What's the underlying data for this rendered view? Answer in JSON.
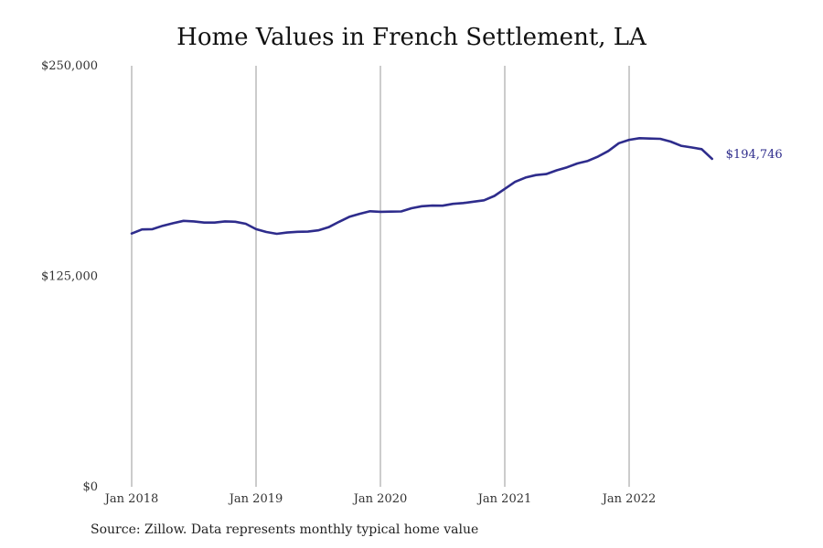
{
  "colors": {
    "line": "#2e2c8c",
    "grid": "#999999",
    "text": "#333333"
  },
  "source": "Source: Zillow. Data represents monthly typical home value",
  "chart_data": {
    "type": "line",
    "title": "Home Values in French Settlement, LA",
    "xlabel": "",
    "ylabel": "",
    "ylim": [
      0,
      250000
    ],
    "y_ticks": [
      {
        "value": 0,
        "label": "$0"
      },
      {
        "value": 125000,
        "label": "$125,000"
      },
      {
        "value": 250000,
        "label": "$250,000"
      }
    ],
    "x_ticks": [
      {
        "value": "2018-01",
        "label": "Jan 2018"
      },
      {
        "value": "2019-01",
        "label": "Jan 2019"
      },
      {
        "value": "2020-01",
        "label": "Jan 2020"
      },
      {
        "value": "2021-01",
        "label": "Jan 2021"
      },
      {
        "value": "2022-01",
        "label": "Jan 2022"
      }
    ],
    "grid": "vertical",
    "end_label": "$194,746",
    "x": [
      "2018-01",
      "2018-02",
      "2018-03",
      "2018-04",
      "2018-05",
      "2018-06",
      "2018-07",
      "2018-08",
      "2018-09",
      "2018-10",
      "2018-11",
      "2018-12",
      "2019-01",
      "2019-02",
      "2019-03",
      "2019-04",
      "2019-05",
      "2019-06",
      "2019-07",
      "2019-08",
      "2019-09",
      "2019-10",
      "2019-11",
      "2019-12",
      "2020-01",
      "2020-02",
      "2020-03",
      "2020-04",
      "2020-05",
      "2020-06",
      "2020-07",
      "2020-08",
      "2020-09",
      "2020-10",
      "2020-11",
      "2020-12",
      "2021-01",
      "2021-02",
      "2021-03",
      "2021-04",
      "2021-05",
      "2021-06",
      "2021-07",
      "2021-08",
      "2021-09",
      "2021-10",
      "2021-11",
      "2021-12",
      "2022-01",
      "2022-02",
      "2022-03",
      "2022-04",
      "2022-05",
      "2022-06",
      "2022-07",
      "2022-08",
      "2022-09"
    ],
    "series": [
      {
        "values": [
          150400,
          152800,
          153000,
          155000,
          156500,
          157900,
          157600,
          156900,
          156900,
          157600,
          157400,
          156200,
          153000,
          151300,
          150200,
          151000,
          151400,
          151500,
          152300,
          154100,
          157300,
          160300,
          162100,
          163600,
          163300,
          163400,
          163500,
          165400,
          166600,
          167000,
          166900,
          168000,
          168500,
          169300,
          170100,
          172700,
          176900,
          181100,
          183600,
          185100,
          185700,
          187900,
          189700,
          192000,
          193500,
          196100,
          199400,
          204000,
          206000,
          207000,
          206800,
          206600,
          205000,
          202500,
          201500,
          200500,
          194746
        ]
      }
    ]
  }
}
